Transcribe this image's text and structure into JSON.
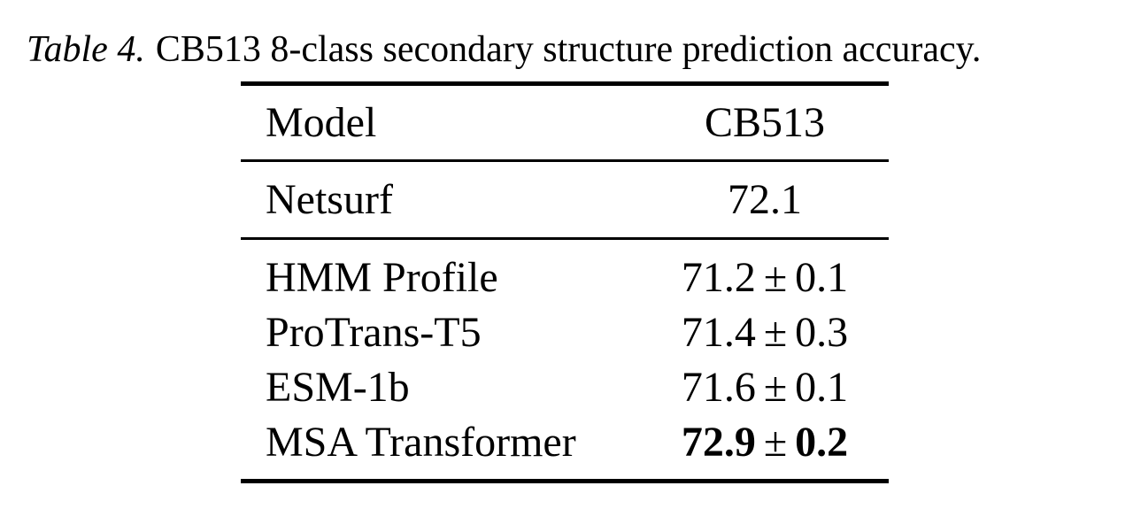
{
  "caption": {
    "label": "Table 4.",
    "text": "CB513 8-class secondary structure prediction accuracy."
  },
  "table": {
    "col_headers": [
      "Model",
      "CB513"
    ],
    "baseline": {
      "model": "Netsurf",
      "value": "72.1"
    },
    "rows": [
      {
        "model": "HMM Profile",
        "value_main": "71.2",
        "pm": "±",
        "value_err": "0.1",
        "bold": false
      },
      {
        "model": "ProTrans-T5",
        "value_main": "71.4",
        "pm": "±",
        "value_err": "0.3",
        "bold": false
      },
      {
        "model": "ESM-1b",
        "value_main": "71.6",
        "pm": "±",
        "value_err": "0.1",
        "bold": false
      },
      {
        "model": "MSA Transformer",
        "value_main": "72.9",
        "pm": "±",
        "value_err": "0.2",
        "bold": true
      }
    ]
  },
  "colors": {
    "text": "#000000",
    "background": "#ffffff",
    "rule": "#000000"
  }
}
